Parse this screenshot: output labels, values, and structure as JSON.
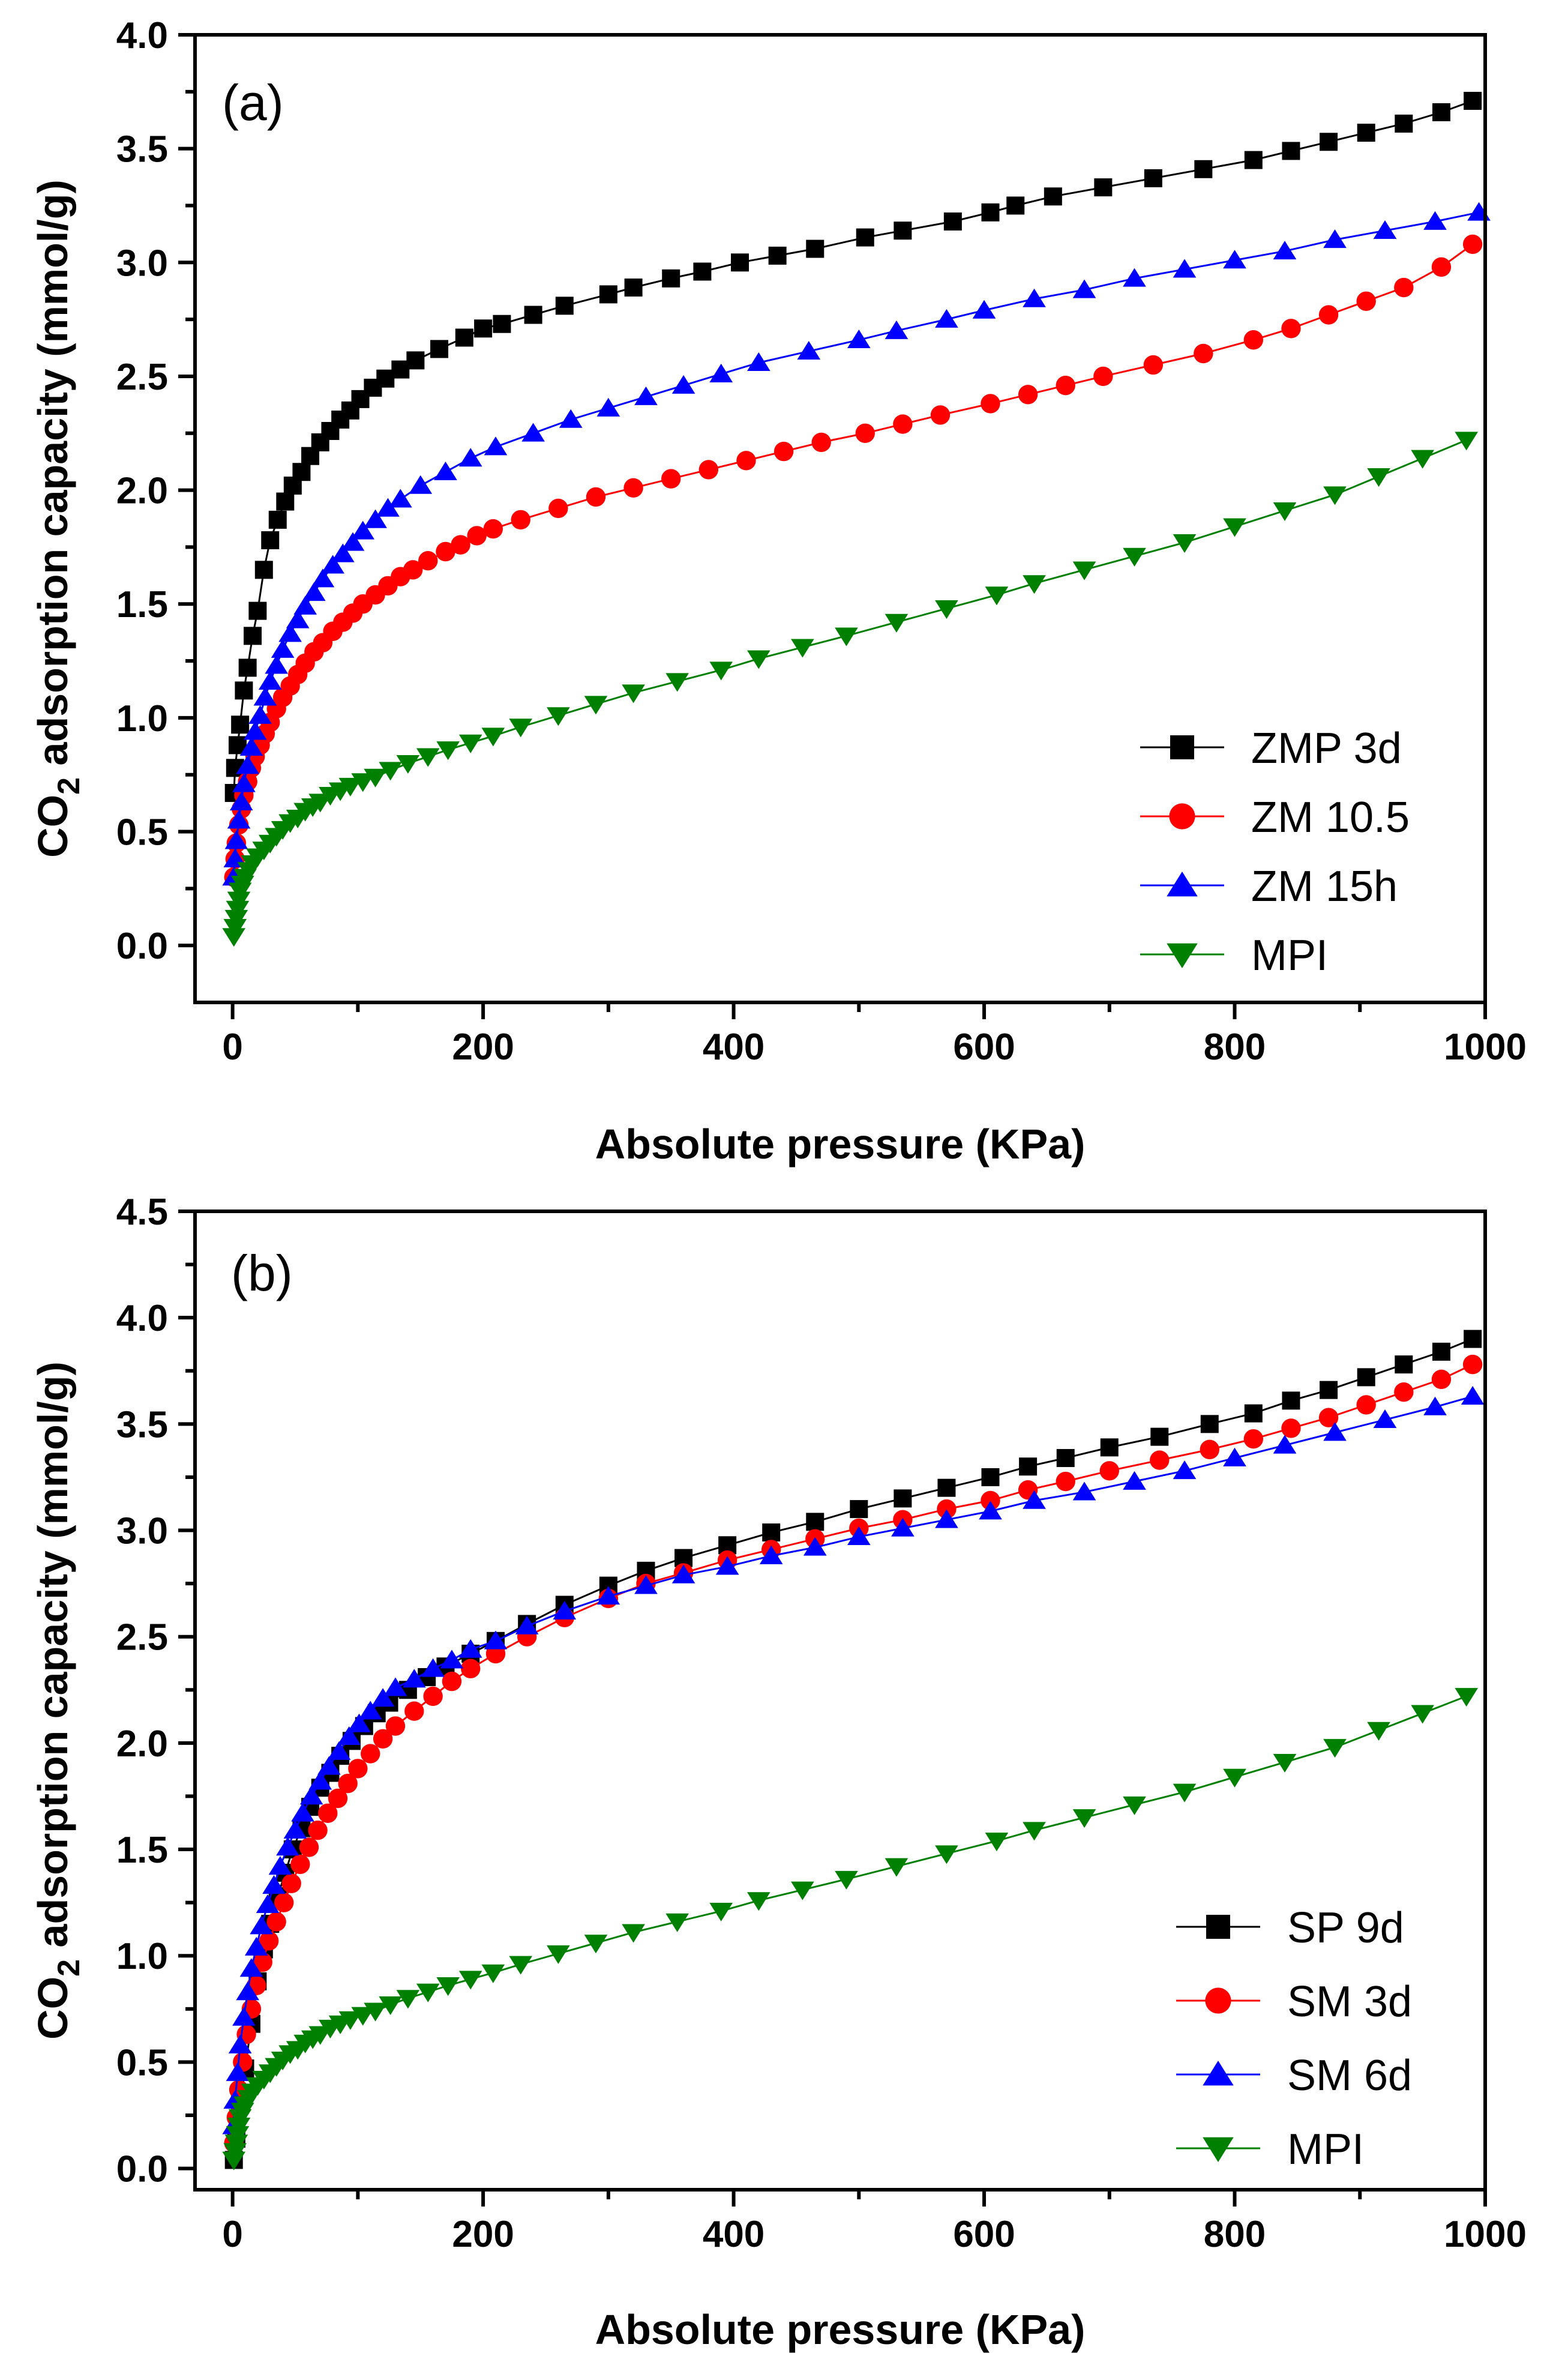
{
  "chart_data": [
    {
      "type": "scatter",
      "panel_label": "(a)",
      "xlabel": "Absolute pressure (KPa)",
      "ylabel_main": "CO",
      "ylabel_sub": "2",
      "ylabel_rest": " adsorption capacity (mmol/g)",
      "xlim": [
        -30,
        1000
      ],
      "ylim": [
        -0.25,
        4.0
      ],
      "xticks": [
        0,
        200,
        400,
        600,
        800,
        1000
      ],
      "xtick_labels": [
        "0",
        "200",
        "400",
        "600",
        "800",
        "1000"
      ],
      "yticks": [
        0.0,
        0.5,
        1.0,
        1.5,
        2.0,
        2.5,
        3.0,
        3.5,
        4.0
      ],
      "ytick_labels": [
        "0.0",
        "0.5",
        "1.0",
        "1.5",
        "2.0",
        "2.5",
        "3.0",
        "3.5",
        "4.0"
      ],
      "legend_position": "bottom-right",
      "series": [
        {
          "name": "ZMP 3d",
          "color": "#000000",
          "marker": "square",
          "x": [
            1,
            2,
            4,
            6,
            9,
            12,
            16,
            20,
            25,
            30,
            36,
            42,
            48,
            55,
            62,
            70,
            78,
            86,
            94,
            102,
            112,
            122,
            134,
            146,
            165,
            185,
            200,
            215,
            240,
            265,
            300,
            320,
            350,
            375,
            405,
            435,
            465,
            505,
            535,
            575,
            605,
            625,
            655,
            695,
            735,
            775,
            815,
            845,
            875,
            905,
            935,
            965,
            990
          ],
          "values": [
            0.67,
            0.78,
            0.88,
            0.97,
            1.12,
            1.22,
            1.36,
            1.47,
            1.65,
            1.78,
            1.87,
            1.95,
            2.02,
            2.08,
            2.15,
            2.21,
            2.26,
            2.31,
            2.35,
            2.4,
            2.45,
            2.49,
            2.53,
            2.57,
            2.62,
            2.67,
            2.71,
            2.73,
            2.77,
            2.81,
            2.86,
            2.89,
            2.93,
            2.96,
            3.0,
            3.03,
            3.06,
            3.11,
            3.14,
            3.18,
            3.22,
            3.25,
            3.29,
            3.33,
            3.37,
            3.41,
            3.45,
            3.49,
            3.53,
            3.57,
            3.61,
            3.66,
            3.71
          ]
        },
        {
          "name": "ZM 10.5",
          "color": "#ff0000",
          "marker": "circle",
          "x": [
            1,
            2,
            3,
            5,
            7,
            9,
            12,
            15,
            18,
            22,
            26,
            30,
            35,
            40,
            46,
            52,
            58,
            65,
            72,
            80,
            88,
            96,
            104,
            114,
            124,
            134,
            144,
            156,
            170,
            182,
            195,
            208,
            230,
            260,
            290,
            320,
            350,
            380,
            410,
            440,
            470,
            505,
            535,
            565,
            605,
            635,
            665,
            695,
            735,
            775,
            815,
            845,
            875,
            905,
            935,
            965,
            990
          ],
          "values": [
            0.3,
            0.38,
            0.45,
            0.53,
            0.6,
            0.66,
            0.72,
            0.78,
            0.83,
            0.88,
            0.93,
            0.98,
            1.04,
            1.09,
            1.14,
            1.19,
            1.24,
            1.29,
            1.33,
            1.38,
            1.42,
            1.46,
            1.5,
            1.54,
            1.58,
            1.62,
            1.65,
            1.69,
            1.73,
            1.76,
            1.8,
            1.83,
            1.87,
            1.92,
            1.97,
            2.01,
            2.05,
            2.09,
            2.13,
            2.17,
            2.21,
            2.25,
            2.29,
            2.33,
            2.38,
            2.42,
            2.46,
            2.5,
            2.55,
            2.6,
            2.66,
            2.71,
            2.77,
            2.83,
            2.89,
            2.98,
            3.08
          ]
        },
        {
          "name": "ZM 15h",
          "color": "#0000ff",
          "marker": "triangle-up",
          "x": [
            1,
            2,
            3,
            5,
            7,
            9,
            12,
            15,
            18,
            22,
            26,
            30,
            35,
            40,
            46,
            52,
            58,
            65,
            72,
            80,
            88,
            96,
            104,
            114,
            124,
            134,
            150,
            170,
            190,
            210,
            240,
            270,
            300,
            330,
            360,
            390,
            420,
            460,
            500,
            530,
            570,
            600,
            640,
            680,
            720,
            760,
            800,
            840,
            880,
            920,
            960,
            995
          ],
          "values": [
            0.3,
            0.38,
            0.46,
            0.55,
            0.63,
            0.71,
            0.79,
            0.87,
            0.94,
            1.01,
            1.09,
            1.16,
            1.23,
            1.3,
            1.37,
            1.43,
            1.49,
            1.55,
            1.61,
            1.67,
            1.72,
            1.77,
            1.82,
            1.87,
            1.92,
            1.96,
            2.02,
            2.08,
            2.14,
            2.19,
            2.25,
            2.31,
            2.36,
            2.41,
            2.46,
            2.51,
            2.56,
            2.61,
            2.66,
            2.7,
            2.75,
            2.79,
            2.84,
            2.88,
            2.93,
            2.97,
            3.01,
            3.05,
            3.1,
            3.14,
            3.18,
            3.22
          ]
        },
        {
          "name": "MPI",
          "color": "#008000",
          "marker": "triangle-down",
          "x": [
            1,
            2,
            3,
            4,
            5,
            6,
            8,
            10,
            13,
            16,
            20,
            25,
            30,
            35,
            40,
            46,
            52,
            58,
            64,
            70,
            78,
            86,
            94,
            104,
            114,
            126,
            140,
            156,
            172,
            190,
            208,
            230,
            260,
            290,
            320,
            355,
            390,
            420,
            455,
            490,
            530,
            570,
            610,
            640,
            680,
            720,
            760,
            800,
            840,
            880,
            915,
            950,
            985
          ],
          "values": [
            0.04,
            0.08,
            0.12,
            0.16,
            0.2,
            0.24,
            0.27,
            0.3,
            0.33,
            0.36,
            0.39,
            0.42,
            0.45,
            0.48,
            0.51,
            0.54,
            0.56,
            0.59,
            0.61,
            0.63,
            0.66,
            0.68,
            0.7,
            0.72,
            0.74,
            0.77,
            0.8,
            0.83,
            0.86,
            0.89,
            0.92,
            0.96,
            1.01,
            1.06,
            1.11,
            1.16,
            1.21,
            1.26,
            1.31,
            1.36,
            1.42,
            1.48,
            1.54,
            1.59,
            1.65,
            1.71,
            1.77,
            1.84,
            1.91,
            1.98,
            2.06,
            2.14,
            2.22
          ]
        }
      ]
    },
    {
      "type": "scatter",
      "panel_label": "(b)",
      "xlabel": "Absolute pressure (KPa)",
      "ylabel_main": "CO",
      "ylabel_sub": "2",
      "ylabel_rest": " adsorption capacity (mmol/g)",
      "xlim": [
        -30,
        1000
      ],
      "ylim": [
        -0.1,
        4.5
      ],
      "xticks": [
        0,
        200,
        400,
        600,
        800,
        1000
      ],
      "xtick_labels": [
        "0",
        "200",
        "400",
        "600",
        "800",
        "1000"
      ],
      "yticks": [
        0.0,
        0.5,
        1.0,
        1.5,
        2.0,
        2.5,
        3.0,
        3.5,
        4.0,
        4.5
      ],
      "ytick_labels": [
        "0.0",
        "0.5",
        "1.0",
        "1.5",
        "2.0",
        "2.5",
        "3.0",
        "3.5",
        "4.0",
        "4.5"
      ],
      "legend_position": "bottom-right",
      "series": [
        {
          "name": "SP 9d",
          "color": "#000000",
          "marker": "square",
          "x": [
            1,
            3,
            6,
            10,
            15,
            20,
            25,
            30,
            36,
            42,
            48,
            55,
            62,
            70,
            78,
            86,
            95,
            105,
            115,
            125,
            140,
            155,
            170,
            190,
            210,
            235,
            265,
            300,
            330,
            360,
            395,
            430,
            465,
            500,
            535,
            570,
            605,
            635,
            665,
            700,
            740,
            780,
            815,
            845,
            875,
            905,
            935,
            965,
            990
          ],
          "values": [
            0.04,
            0.14,
            0.3,
            0.47,
            0.68,
            0.88,
            1.03,
            1.15,
            1.28,
            1.39,
            1.5,
            1.6,
            1.7,
            1.79,
            1.86,
            1.94,
            2.01,
            2.08,
            2.14,
            2.19,
            2.25,
            2.31,
            2.36,
            2.42,
            2.48,
            2.56,
            2.65,
            2.74,
            2.81,
            2.87,
            2.93,
            2.99,
            3.04,
            3.1,
            3.15,
            3.2,
            3.25,
            3.3,
            3.34,
            3.39,
            3.44,
            3.5,
            3.55,
            3.61,
            3.66,
            3.72,
            3.78,
            3.84,
            3.9
          ]
        },
        {
          "name": "SM 3d",
          "color": "#ff0000",
          "marker": "circle",
          "x": [
            1,
            3,
            5,
            8,
            11,
            15,
            19,
            24,
            29,
            35,
            41,
            47,
            54,
            61,
            68,
            76,
            84,
            92,
            100,
            110,
            120,
            130,
            145,
            160,
            175,
            190,
            210,
            235,
            265,
            300,
            330,
            360,
            395,
            430,
            465,
            500,
            535,
            570,
            605,
            635,
            665,
            700,
            740,
            780,
            815,
            845,
            875,
            905,
            935,
            965,
            990
          ],
          "values": [
            0.12,
            0.24,
            0.37,
            0.5,
            0.63,
            0.75,
            0.86,
            0.97,
            1.07,
            1.16,
            1.25,
            1.34,
            1.43,
            1.51,
            1.59,
            1.67,
            1.74,
            1.81,
            1.88,
            1.95,
            2.02,
            2.08,
            2.15,
            2.22,
            2.29,
            2.35,
            2.42,
            2.5,
            2.59,
            2.68,
            2.75,
            2.8,
            2.86,
            2.91,
            2.96,
            3.01,
            3.05,
            3.1,
            3.14,
            3.19,
            3.23,
            3.28,
            3.33,
            3.38,
            3.43,
            3.48,
            3.53,
            3.59,
            3.65,
            3.71,
            3.78
          ]
        },
        {
          "name": "SM 6d",
          "color": "#0000ff",
          "marker": "triangle-up",
          "x": [
            1,
            2,
            4,
            6,
            9,
            12,
            15,
            19,
            23,
            28,
            33,
            38,
            44,
            50,
            56,
            63,
            70,
            77,
            85,
            93,
            101,
            110,
            120,
            130,
            145,
            160,
            175,
            190,
            210,
            235,
            265,
            300,
            330,
            360,
            395,
            430,
            465,
            500,
            535,
            570,
            605,
            640,
            680,
            720,
            760,
            800,
            840,
            880,
            920,
            960,
            990
          ],
          "values": [
            0.2,
            0.32,
            0.45,
            0.58,
            0.71,
            0.83,
            0.94,
            1.04,
            1.14,
            1.24,
            1.33,
            1.42,
            1.51,
            1.59,
            1.67,
            1.75,
            1.82,
            1.89,
            1.96,
            2.03,
            2.09,
            2.15,
            2.21,
            2.26,
            2.3,
            2.35,
            2.39,
            2.44,
            2.48,
            2.55,
            2.62,
            2.69,
            2.74,
            2.79,
            2.83,
            2.88,
            2.92,
            2.97,
            3.01,
            3.05,
            3.09,
            3.14,
            3.18,
            3.23,
            3.28,
            3.34,
            3.4,
            3.46,
            3.52,
            3.58,
            3.63
          ]
        },
        {
          "name": "MPI",
          "color": "#008000",
          "marker": "triangle-down",
          "x": [
            1,
            2,
            3,
            4,
            5,
            6,
            8,
            10,
            13,
            16,
            20,
            25,
            30,
            35,
            40,
            46,
            52,
            58,
            64,
            70,
            78,
            86,
            94,
            104,
            114,
            126,
            140,
            156,
            172,
            190,
            208,
            230,
            260,
            290,
            320,
            355,
            390,
            420,
            455,
            490,
            530,
            570,
            610,
            640,
            680,
            720,
            760,
            800,
            840,
            880,
            915,
            950,
            985
          ],
          "values": [
            0.04,
            0.08,
            0.12,
            0.16,
            0.2,
            0.24,
            0.27,
            0.3,
            0.33,
            0.36,
            0.39,
            0.42,
            0.45,
            0.48,
            0.51,
            0.54,
            0.56,
            0.59,
            0.61,
            0.63,
            0.66,
            0.68,
            0.7,
            0.72,
            0.74,
            0.77,
            0.8,
            0.83,
            0.86,
            0.89,
            0.92,
            0.96,
            1.01,
            1.06,
            1.11,
            1.16,
            1.21,
            1.26,
            1.31,
            1.36,
            1.42,
            1.48,
            1.54,
            1.59,
            1.65,
            1.71,
            1.77,
            1.84,
            1.91,
            1.98,
            2.06,
            2.14,
            2.22
          ]
        }
      ]
    }
  ]
}
